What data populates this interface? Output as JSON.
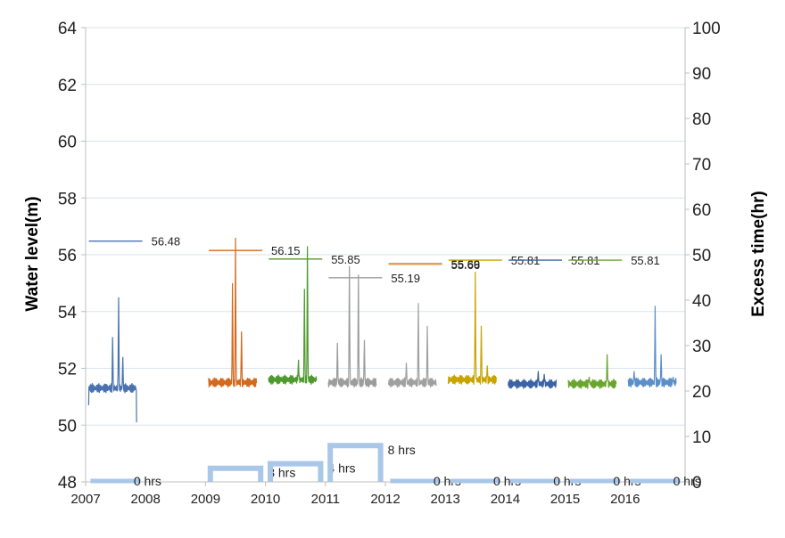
{
  "chart_data": {
    "type": "line",
    "xlabel": "",
    "ylabel": "Water level(m)",
    "y2label": "Excess time(hr)",
    "x_ticks": [
      "2007",
      "2008",
      "2009",
      "2010",
      "2011",
      "2012",
      "2013",
      "2014",
      "2015",
      "2016"
    ],
    "ylim": [
      48,
      64
    ],
    "y_ticks": [
      "48",
      "50",
      "52",
      "54",
      "56",
      "58",
      "60",
      "62",
      "64"
    ],
    "y2lim": [
      0,
      100
    ],
    "y2_ticks": [
      "0",
      "10",
      "20",
      "30",
      "40",
      "50",
      "60",
      "70",
      "80",
      "90",
      "100"
    ],
    "grid": "horizontal, left axis",
    "series": [
      {
        "year": 2007,
        "color": "#4a72b0",
        "threshold": 56.48,
        "threshold_label": "56.48",
        "base": 51.3,
        "peaks": [
          [
            2007.45,
            53.1
          ],
          [
            2007.55,
            54.5
          ],
          [
            2007.62,
            52.4
          ]
        ]
      },
      {
        "year": 2009,
        "color": "#d2691e",
        "threshold": 56.15,
        "threshold_label": "56.15",
        "base": 51.5,
        "peaks": [
          [
            2009.45,
            55.0
          ],
          [
            2009.5,
            56.6
          ],
          [
            2009.6,
            53.3
          ]
        ]
      },
      {
        "year": 2010,
        "color": "#4f9a2e",
        "threshold": 55.85,
        "threshold_label": "55.85",
        "base": 51.6,
        "peaks": [
          [
            2010.55,
            52.3
          ],
          [
            2010.65,
            54.8
          ],
          [
            2010.7,
            56.3
          ]
        ]
      },
      {
        "year": 2011,
        "color": "#9c9c9c",
        "threshold": 55.19,
        "threshold_label": "55.19",
        "base": 51.5,
        "peaks": [
          [
            2011.2,
            52.9
          ],
          [
            2011.4,
            55.6
          ],
          [
            2011.55,
            55.3
          ],
          [
            2011.65,
            53.0
          ]
        ]
      },
      {
        "year": 2012,
        "color": "#a0a0a0",
        "threshold": 55.69,
        "threshold_label": "55.69",
        "base": 51.5,
        "peaks": [
          [
            2012.35,
            52.2
          ],
          [
            2012.55,
            54.3
          ],
          [
            2012.7,
            53.5
          ]
        ]
      },
      {
        "year": 2013,
        "color": "#c8a400",
        "threshold": 55.81,
        "threshold_label": "55.81",
        "base": 51.6,
        "peaks": [
          [
            2013.5,
            55.4
          ],
          [
            2013.6,
            53.5
          ],
          [
            2013.7,
            52.1
          ]
        ]
      },
      {
        "year": 2014,
        "color": "#3c63a5",
        "threshold": 55.81,
        "threshold_label": "55.81",
        "base": 51.45,
        "peaks": [
          [
            2014.55,
            51.9
          ],
          [
            2014.65,
            51.8
          ]
        ]
      },
      {
        "year": 2015,
        "color": "#6aa52e",
        "threshold": 55.81,
        "threshold_label": "55.81",
        "base": 51.45,
        "peaks": [
          [
            2015.4,
            51.7
          ],
          [
            2015.7,
            52.5
          ]
        ]
      },
      {
        "year": 2016,
        "color": "#5b8fc7",
        "threshold": null,
        "threshold_label": null,
        "base": 51.5,
        "peaks": [
          [
            2016.15,
            51.9
          ],
          [
            2016.5,
            54.2
          ],
          [
            2016.6,
            52.5
          ],
          [
            2016.8,
            51.7
          ]
        ]
      }
    ],
    "extra_threshold": {
      "label": "55.66",
      "color": "#ed9b4a",
      "value": 55.66
    },
    "excess_time": [
      {
        "x": 2007.5,
        "hours": 0,
        "label": "0 hrs"
      },
      {
        "x": 2009.5,
        "hours": 3,
        "label": "3 hrs"
      },
      {
        "x": 2010.5,
        "hours": 4,
        "label": "4 hrs"
      },
      {
        "x": 2011.5,
        "hours": 8,
        "label": "8 hrs"
      },
      {
        "x": 2012.5,
        "hours": 0,
        "label": "0 hrs"
      },
      {
        "x": 2013.5,
        "hours": 0,
        "label": "0 hrs"
      },
      {
        "x": 2014.5,
        "hours": 0,
        "label": "0 hrs"
      },
      {
        "x": 2015.5,
        "hours": 0,
        "label": "0 hrs"
      },
      {
        "x": 2016.5,
        "hours": 0,
        "label": "0 hrs"
      }
    ]
  }
}
